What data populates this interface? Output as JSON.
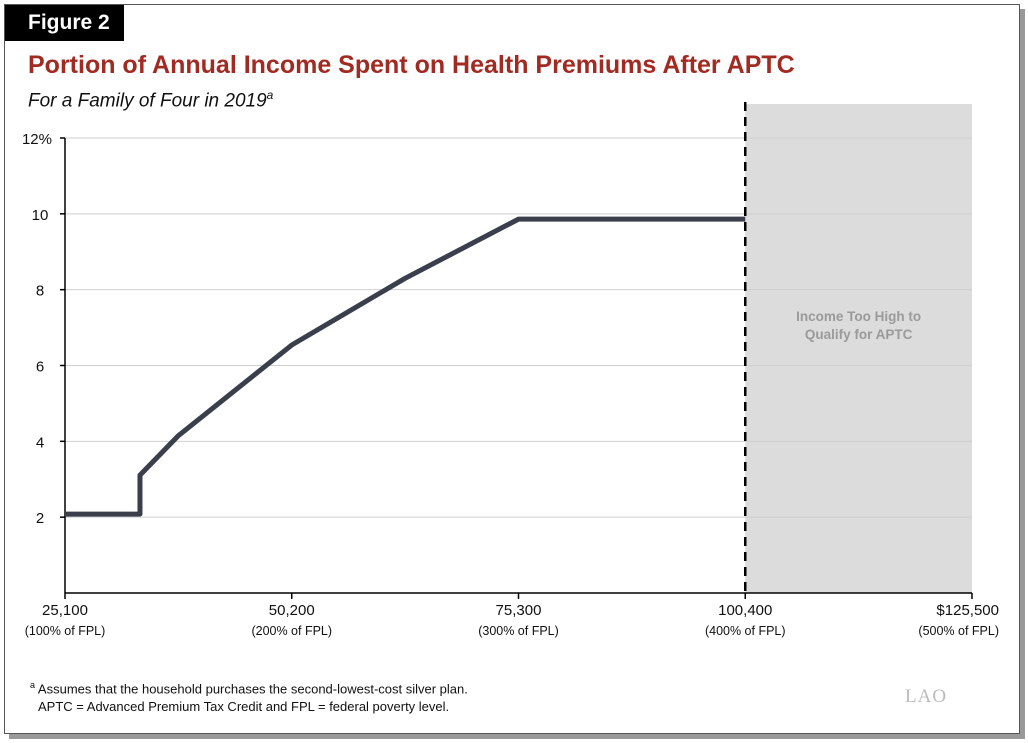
{
  "figure_label": "Figure 2",
  "chart_data": {
    "type": "line",
    "title": "Portion of Annual Income Spent on Health Premiums After APTC",
    "subtitle": "For a Family of Four in 2019",
    "subtitle_footnote_marker": "a",
    "xlim": [
      25100,
      125500
    ],
    "ylim": [
      0,
      12
    ],
    "grid": true,
    "x_ticks": [
      {
        "value": 25100,
        "label": "25,100",
        "sublabel": "(100% of FPL)"
      },
      {
        "value": 50200,
        "label": "50,200",
        "sublabel": "(200% of FPL)"
      },
      {
        "value": 75300,
        "label": "75,300",
        "sublabel": "(300% of FPL)"
      },
      {
        "value": 100400,
        "label": "100,400",
        "sublabel": "(400% of FPL)"
      },
      {
        "value": 125500,
        "label": "$125,500",
        "sublabel": "(500% of FPL)"
      }
    ],
    "y_ticks": [
      {
        "value": 2,
        "label": "2"
      },
      {
        "value": 4,
        "label": "4"
      },
      {
        "value": 6,
        "label": "6"
      },
      {
        "value": 8,
        "label": "8"
      },
      {
        "value": 10,
        "label": "10"
      },
      {
        "value": 12,
        "label": "12%"
      }
    ],
    "series": [
      {
        "x": [
          25100,
          33400,
          33400,
          37650,
          50200,
          62750,
          75300,
          100400
        ],
        "y": [
          2.08,
          2.08,
          3.11,
          4.15,
          6.54,
          8.3,
          9.86,
          9.86
        ],
        "color": "#3a3f4b"
      }
    ],
    "shaded_region": {
      "x": [
        100400,
        125500
      ],
      "color": "#dcdcdc",
      "label_line1": "Income Too High to",
      "label_line2": "Qualify for APTC"
    }
  },
  "footnotes": {
    "marker": "a",
    "line1": "Assumes that the household purchases the second-lowest-cost silver plan.",
    "line2": "APTC = Advanced Premium Tax Credit and FPL = federal poverty level."
  },
  "logo": "LAO"
}
